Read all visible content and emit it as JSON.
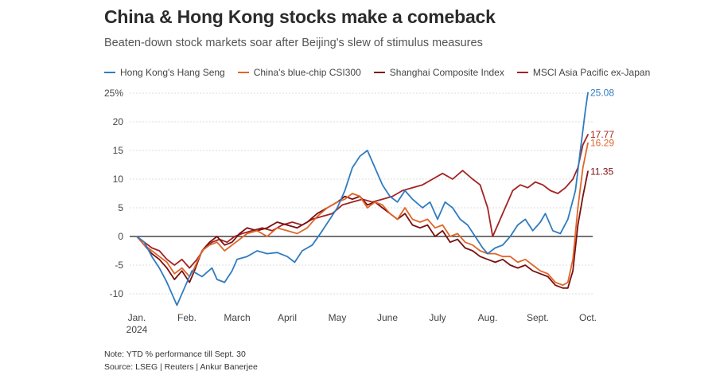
{
  "header": {
    "title": "China & Hong Kong stocks make a comeback",
    "subtitle": "Beaten-down stock markets soar after Beijing's slew of stimulus measures"
  },
  "footer": {
    "note": "Note: YTD % performance till Sept. 30",
    "source": "Source: LSEG | Reuters | Ankur Banerjee"
  },
  "colors": {
    "hang_seng": "#2f7cc0",
    "csi300": "#e0662a",
    "shanghai": "#7a1010",
    "msci": "#a52222",
    "zero_line": "#222222",
    "grid": "#dddddd",
    "label_text": "#555555"
  },
  "chart_data": {
    "type": "line",
    "title": "China & Hong Kong stocks make a comeback",
    "xlabel": "",
    "ylabel": "YTD % performance",
    "xlim": [
      0,
      9
    ],
    "ylim": [
      -12,
      26
    ],
    "y_ticks": [
      {
        "value": 25,
        "label": "25%"
      },
      {
        "value": 20,
        "label": "20"
      },
      {
        "value": 15,
        "label": "15"
      },
      {
        "value": 10,
        "label": "10"
      },
      {
        "value": 5,
        "label": "5"
      },
      {
        "value": 0,
        "label": "0"
      },
      {
        "value": -5,
        "label": "-5"
      },
      {
        "value": -10,
        "label": "-10"
      }
    ],
    "x_ticks": [
      {
        "value": 0,
        "label": "Jan.",
        "sublabel": "2024"
      },
      {
        "value": 1,
        "label": "Feb."
      },
      {
        "value": 2,
        "label": "March"
      },
      {
        "value": 3,
        "label": "April"
      },
      {
        "value": 4,
        "label": "May"
      },
      {
        "value": 5,
        "label": "June"
      },
      {
        "value": 6,
        "label": "July"
      },
      {
        "value": 7,
        "label": "Aug."
      },
      {
        "value": 8,
        "label": "Sept."
      },
      {
        "value": 9,
        "label": "Oct."
      }
    ],
    "grid": "horizontal",
    "legend_position": "top-left",
    "series": [
      {
        "key": "hang_seng",
        "name": "Hong Kong's Hang Seng",
        "end_label": "25.08",
        "points": [
          [
            0,
            0
          ],
          [
            0.15,
            -1
          ],
          [
            0.3,
            -3.5
          ],
          [
            0.45,
            -5.5
          ],
          [
            0.6,
            -8
          ],
          [
            0.7,
            -10
          ],
          [
            0.8,
            -12
          ],
          [
            0.95,
            -9
          ],
          [
            1.1,
            -6
          ],
          [
            1.3,
            -7
          ],
          [
            1.5,
            -5.5
          ],
          [
            1.6,
            -7.5
          ],
          [
            1.75,
            -8
          ],
          [
            1.9,
            -6
          ],
          [
            2.0,
            -4
          ],
          [
            2.2,
            -3.5
          ],
          [
            2.4,
            -2.5
          ],
          [
            2.6,
            -3
          ],
          [
            2.8,
            -2.8
          ],
          [
            3.0,
            -3.5
          ],
          [
            3.15,
            -4.5
          ],
          [
            3.3,
            -2.5
          ],
          [
            3.5,
            -1.5
          ],
          [
            3.7,
            1
          ],
          [
            3.85,
            3
          ],
          [
            4.0,
            5
          ],
          [
            4.15,
            8
          ],
          [
            4.3,
            12
          ],
          [
            4.45,
            14
          ],
          [
            4.6,
            15
          ],
          [
            4.75,
            12
          ],
          [
            4.9,
            9
          ],
          [
            5.05,
            7
          ],
          [
            5.2,
            6
          ],
          [
            5.35,
            8
          ],
          [
            5.5,
            6.5
          ],
          [
            5.7,
            5
          ],
          [
            5.85,
            6
          ],
          [
            6.0,
            3
          ],
          [
            6.15,
            6
          ],
          [
            6.3,
            5
          ],
          [
            6.45,
            3
          ],
          [
            6.6,
            2
          ],
          [
            6.75,
            0
          ],
          [
            6.9,
            -2
          ],
          [
            7.0,
            -3
          ],
          [
            7.15,
            -2
          ],
          [
            7.3,
            -1.5
          ],
          [
            7.45,
            0
          ],
          [
            7.6,
            2
          ],
          [
            7.75,
            3
          ],
          [
            7.9,
            1
          ],
          [
            8.05,
            2.5
          ],
          [
            8.15,
            4
          ],
          [
            8.3,
            1
          ],
          [
            8.45,
            0.5
          ],
          [
            8.6,
            3
          ],
          [
            8.75,
            8
          ],
          [
            8.85,
            15
          ],
          [
            8.95,
            22
          ],
          [
            9.0,
            25.08
          ]
        ]
      },
      {
        "key": "csi300",
        "name": "China's blue-chip CSI300",
        "end_label": "16.29",
        "points": [
          [
            0,
            0
          ],
          [
            0.15,
            -1.5
          ],
          [
            0.3,
            -2.5
          ],
          [
            0.45,
            -3.5
          ],
          [
            0.6,
            -4.5
          ],
          [
            0.75,
            -6.5
          ],
          [
            0.9,
            -5.5
          ],
          [
            1.05,
            -7
          ],
          [
            1.15,
            -5.5
          ],
          [
            1.3,
            -2.5
          ],
          [
            1.45,
            -1.5
          ],
          [
            1.6,
            -1
          ],
          [
            1.75,
            -2.5
          ],
          [
            1.9,
            -1.5
          ],
          [
            2.05,
            -0.5
          ],
          [
            2.2,
            0.5
          ],
          [
            2.4,
            1
          ],
          [
            2.6,
            0
          ],
          [
            2.8,
            1.5
          ],
          [
            3.0,
            1
          ],
          [
            3.2,
            0.5
          ],
          [
            3.4,
            1.5
          ],
          [
            3.6,
            3.5
          ],
          [
            3.8,
            5
          ],
          [
            4.0,
            6
          ],
          [
            4.15,
            6.5
          ],
          [
            4.3,
            7.5
          ],
          [
            4.45,
            7
          ],
          [
            4.6,
            5
          ],
          [
            4.75,
            6
          ],
          [
            4.9,
            5.5
          ],
          [
            5.05,
            4
          ],
          [
            5.2,
            3
          ],
          [
            5.35,
            5
          ],
          [
            5.5,
            3
          ],
          [
            5.65,
            2.5
          ],
          [
            5.8,
            3
          ],
          [
            5.95,
            1.5
          ],
          [
            6.1,
            2
          ],
          [
            6.25,
            0
          ],
          [
            6.4,
            0.5
          ],
          [
            6.55,
            -1
          ],
          [
            6.7,
            -1.5
          ],
          [
            6.85,
            -2.5
          ],
          [
            7.0,
            -3
          ],
          [
            7.15,
            -3
          ],
          [
            7.3,
            -3.5
          ],
          [
            7.45,
            -3.5
          ],
          [
            7.6,
            -4.5
          ],
          [
            7.75,
            -4
          ],
          [
            7.9,
            -5
          ],
          [
            8.05,
            -6
          ],
          [
            8.2,
            -6.5
          ],
          [
            8.35,
            -8
          ],
          [
            8.5,
            -8.5
          ],
          [
            8.6,
            -8
          ],
          [
            8.7,
            -4
          ],
          [
            8.8,
            5
          ],
          [
            8.9,
            12
          ],
          [
            9.0,
            16.29
          ]
        ]
      },
      {
        "key": "shanghai",
        "name": "Shanghai Composite Index",
        "end_label": "11.35",
        "points": [
          [
            0,
            0
          ],
          [
            0.15,
            -1.5
          ],
          [
            0.3,
            -3
          ],
          [
            0.45,
            -4
          ],
          [
            0.6,
            -5.5
          ],
          [
            0.75,
            -7.5
          ],
          [
            0.9,
            -6
          ],
          [
            1.05,
            -8
          ],
          [
            1.15,
            -6
          ],
          [
            1.3,
            -2.5
          ],
          [
            1.45,
            -1
          ],
          [
            1.6,
            0
          ],
          [
            1.75,
            -1.5
          ],
          [
            1.9,
            -1
          ],
          [
            2.05,
            0.5
          ],
          [
            2.2,
            1.5
          ],
          [
            2.4,
            1
          ],
          [
            2.6,
            1.5
          ],
          [
            2.8,
            2.5
          ],
          [
            3.0,
            2
          ],
          [
            3.2,
            1.5
          ],
          [
            3.4,
            2.5
          ],
          [
            3.6,
            4
          ],
          [
            3.8,
            5
          ],
          [
            4.0,
            6
          ],
          [
            4.15,
            7
          ],
          [
            4.3,
            6.5
          ],
          [
            4.45,
            7
          ],
          [
            4.6,
            5.5
          ],
          [
            4.75,
            6
          ],
          [
            4.9,
            5
          ],
          [
            5.05,
            4
          ],
          [
            5.2,
            3
          ],
          [
            5.35,
            4
          ],
          [
            5.5,
            2
          ],
          [
            5.65,
            1.5
          ],
          [
            5.8,
            2
          ],
          [
            5.95,
            0
          ],
          [
            6.1,
            1
          ],
          [
            6.25,
            -1
          ],
          [
            6.4,
            -0.5
          ],
          [
            6.55,
            -2
          ],
          [
            6.7,
            -2.5
          ],
          [
            6.85,
            -3.5
          ],
          [
            7.0,
            -4
          ],
          [
            7.15,
            -4.5
          ],
          [
            7.3,
            -4
          ],
          [
            7.45,
            -5
          ],
          [
            7.6,
            -5.5
          ],
          [
            7.75,
            -5
          ],
          [
            7.9,
            -6
          ],
          [
            8.05,
            -6.5
          ],
          [
            8.2,
            -7
          ],
          [
            8.35,
            -8.5
          ],
          [
            8.5,
            -9
          ],
          [
            8.6,
            -9
          ],
          [
            8.7,
            -6
          ],
          [
            8.8,
            2
          ],
          [
            8.9,
            7
          ],
          [
            9.0,
            11.35
          ]
        ]
      },
      {
        "key": "msci",
        "name": "MSCI Asia Pacific ex-Japan",
        "end_label": "17.77",
        "points": [
          [
            0,
            0
          ],
          [
            0.15,
            -1
          ],
          [
            0.3,
            -2
          ],
          [
            0.45,
            -2.5
          ],
          [
            0.6,
            -4
          ],
          [
            0.75,
            -5
          ],
          [
            0.9,
            -4
          ],
          [
            1.05,
            -5.5
          ],
          [
            1.2,
            -4
          ],
          [
            1.35,
            -2
          ],
          [
            1.5,
            -1
          ],
          [
            1.65,
            -0.5
          ],
          [
            1.8,
            -1
          ],
          [
            1.95,
            0
          ],
          [
            2.1,
            0.5
          ],
          [
            2.3,
            1
          ],
          [
            2.5,
            1.5
          ],
          [
            2.7,
            1
          ],
          [
            2.9,
            2
          ],
          [
            3.1,
            2.5
          ],
          [
            3.3,
            2
          ],
          [
            3.5,
            3
          ],
          [
            3.7,
            3.5
          ],
          [
            3.9,
            4
          ],
          [
            4.1,
            5.5
          ],
          [
            4.3,
            6
          ],
          [
            4.5,
            6.5
          ],
          [
            4.7,
            6
          ],
          [
            4.9,
            6.5
          ],
          [
            5.1,
            7
          ],
          [
            5.3,
            8
          ],
          [
            5.5,
            8.5
          ],
          [
            5.7,
            9
          ],
          [
            5.9,
            10
          ],
          [
            6.1,
            11
          ],
          [
            6.3,
            10
          ],
          [
            6.5,
            11.5
          ],
          [
            6.7,
            10
          ],
          [
            6.85,
            9
          ],
          [
            7.0,
            5
          ],
          [
            7.1,
            0
          ],
          [
            7.2,
            2
          ],
          [
            7.35,
            5
          ],
          [
            7.5,
            8
          ],
          [
            7.65,
            9
          ],
          [
            7.8,
            8.5
          ],
          [
            7.95,
            9.5
          ],
          [
            8.1,
            9
          ],
          [
            8.25,
            8
          ],
          [
            8.4,
            7.5
          ],
          [
            8.55,
            8.5
          ],
          [
            8.7,
            10
          ],
          [
            8.8,
            12
          ],
          [
            8.9,
            16
          ],
          [
            9.0,
            17.77
          ]
        ]
      }
    ]
  }
}
